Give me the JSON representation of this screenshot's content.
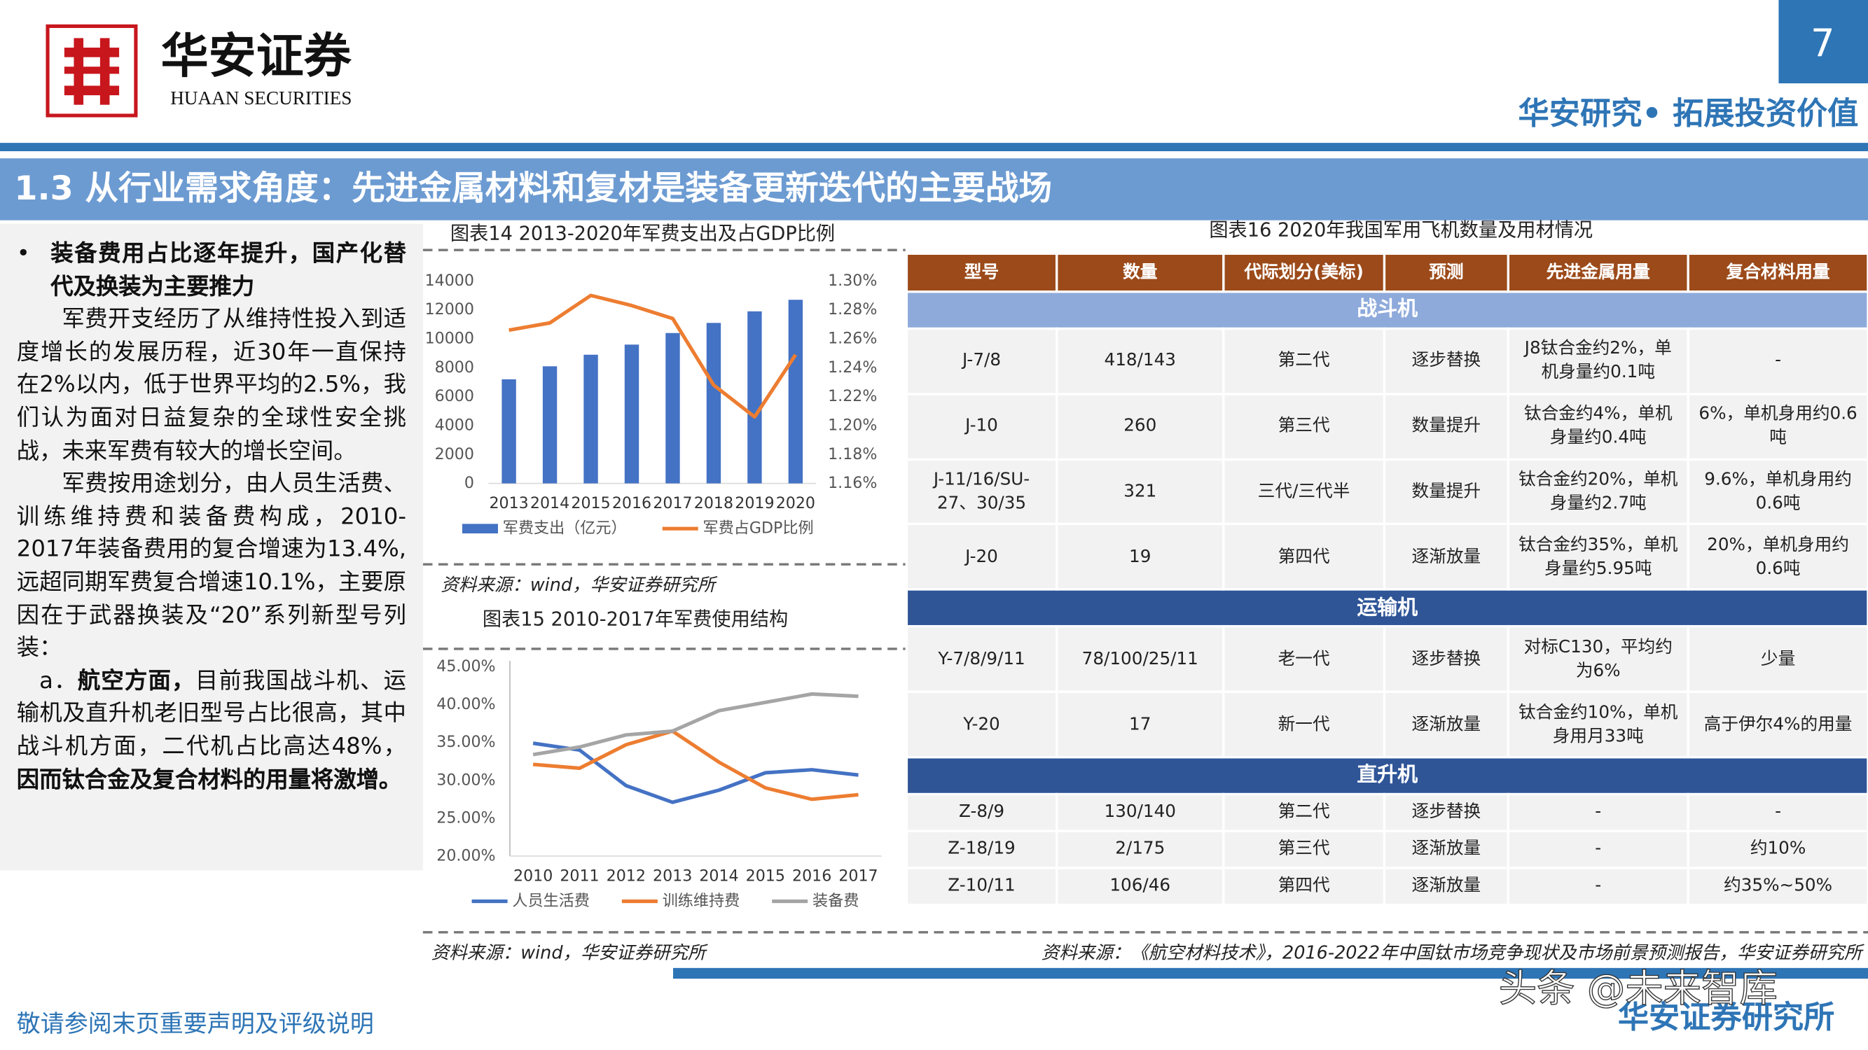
{
  "header": {
    "logo_cn": "华安证券",
    "logo_en": "HUAAN SECURITIES",
    "page": "7",
    "slogan": "华安研究• 拓展投资价值"
  },
  "section_title": "1.3 从行业需求角度：先进金属材料和复材是装备更新迭代的主要战场",
  "left_text": {
    "bullet": "•",
    "heading": "装备费用占比逐年提升，国产化替代及换装为主要推力",
    "paragraphs": [
      [
        {
          "text": "军费开支经历了从维持性投入到适度增长的发展历程，近30年一直保持在2%以内，低于世界平均的2.5%，我们认为面对日益复杂的全球性安全挑战，未来军费有较大的增长空间。",
          "bold": false
        }
      ],
      [
        {
          "text": "军费按用途划分，由人员生活费、训练维持费和装备费构成，2010-2017年装备费用的复合增速为13.4%,远超同期军费复合增速10.1%，主要原因在于武器换装及“20”系列新型号列装：",
          "bold": false
        }
      ],
      [
        {
          "text": "a．",
          "bold": false
        },
        {
          "text": "航空方面，",
          "bold": true
        },
        {
          "text": "目前我国战斗机、运输机及直升机老旧型号占比很高，其中战斗机方面，二代机占比高达48%，",
          "bold": false
        },
        {
          "text": "因而钛合金及复合材料的用量将激增。",
          "bold": true
        }
      ]
    ]
  },
  "chart_data": [
    {
      "type": "bar",
      "title": "图表14 2013-2020年军费支出及占GDP比例",
      "source": "资料来源：wind，华安证券研究所",
      "categories": [
        "2013",
        "2014",
        "2015",
        "2016",
        "2017",
        "2018",
        "2019",
        "2020"
      ],
      "series": [
        {
          "name": "军费支出（亿元）",
          "color": "#4472c4",
          "values": [
            7200,
            8100,
            8900,
            9600,
            10400,
            11100,
            11900,
            12700
          ]
        },
        {
          "name": "军费占GDP比例",
          "color": "#ed7d31",
          "type": "line",
          "axis": "y2",
          "values": [
            1.266,
            1.271,
            1.29,
            1.283,
            1.274,
            1.228,
            1.206,
            1.249
          ]
        }
      ],
      "ylim": [
        0,
        14000
      ],
      "yticks": [
        0,
        2000,
        4000,
        6000,
        8000,
        10000,
        12000,
        14000
      ],
      "y2lim": [
        1.16,
        1.3
      ],
      "y2ticks": [
        {
          "value": 1.16,
          "label": "1.16%"
        },
        {
          "value": 1.18,
          "label": "1.18%"
        },
        {
          "value": 1.2,
          "label": "1.20%"
        },
        {
          "value": 1.22,
          "label": "1.22%"
        },
        {
          "value": 1.24,
          "label": "1.24%"
        },
        {
          "value": 1.26,
          "label": "1.26%"
        },
        {
          "value": 1.28,
          "label": "1.28%"
        },
        {
          "value": 1.3,
          "label": "1.30%"
        }
      ],
      "grid": false
    },
    {
      "type": "line",
      "title": "图表15 2010-2017年军费使用结构",
      "source": "资料来源：wind，华安证券研究所",
      "categories": [
        "2010",
        "2011",
        "2012",
        "2013",
        "2014",
        "2015",
        "2016",
        "2017"
      ],
      "series": [
        {
          "name": "人员生活费",
          "color": "#4472c4",
          "values": [
            34.9,
            34.0,
            29.3,
            27.1,
            28.7,
            31.0,
            31.4,
            30.7
          ]
        },
        {
          "name": "训练维持费",
          "color": "#ed7d31",
          "values": [
            32.1,
            31.6,
            34.7,
            36.5,
            32.4,
            29.0,
            27.5,
            28.1
          ]
        },
        {
          "name": "装备费",
          "color": "#a5a5a5",
          "values": [
            33.4,
            34.4,
            36.0,
            36.5,
            39.2,
            40.3,
            41.4,
            41.1
          ]
        }
      ],
      "ylim": [
        20,
        45
      ],
      "yticks": [
        {
          "value": 20,
          "label": "20.00%"
        },
        {
          "value": 25,
          "label": "25.00%"
        },
        {
          "value": 30,
          "label": "30.00%"
        },
        {
          "value": 35,
          "label": "35.00%"
        },
        {
          "value": 40,
          "label": "40.00%"
        },
        {
          "value": 45,
          "label": "45.00%"
        }
      ],
      "grid": false
    }
  ],
  "table": {
    "title": "图表16 2020年我国军用飞机数量及用材情况",
    "source": "资料来源：《航空材料技术》，2016-2022年中国钛市场竞争现状及市场前景预测报告，华安证券研究所",
    "header": [
      "型号",
      "数量",
      "代际划分(美标)",
      "预测",
      "先进金属用量",
      "复合材料用量"
    ],
    "groups": [
      {
        "name": "战斗机",
        "color": "#8eaadb",
        "rows": [
          [
            "J-7/8",
            "418/143",
            "第二代",
            "逐步替换",
            "J8钛合金约2%，单机身量约0.1吨",
            "-"
          ],
          [
            "J-10",
            "260",
            "第三代",
            "数量提升",
            "钛合金约4%，单机身量约0.4吨",
            "6%，单机身用约0.6吨"
          ],
          [
            "J-11/16/SU-27、30/35",
            "321",
            "三代/三代半",
            "数量提升",
            "钛合金约20%，单机身量约2.7吨",
            "9.6%，单机身用约0.6吨"
          ],
          [
            "J-20",
            "19",
            "第四代",
            "逐渐放量",
            "钛合金约35%，单机身量约5.95吨",
            "20%，单机身用约0.6吨"
          ]
        ]
      },
      {
        "name": "运输机",
        "color": "#2f5597",
        "rows": [
          [
            "Y-7/8/9/11",
            "78/100/25/11",
            "老一代",
            "逐步替换",
            "对标C130，平均约为6%",
            "少量"
          ],
          [
            "Y-20",
            "17",
            "新一代",
            "逐渐放量",
            "钛合金约10%，单机身用月33吨",
            "高于伊尔4%的用量"
          ]
        ]
      },
      {
        "name": "直升机",
        "color": "#2f5597",
        "rows": [
          [
            "Z-8/9",
            "130/140",
            "第二代",
            "逐步替换",
            "-",
            "-"
          ],
          [
            "Z-18/19",
            "2/175",
            "第三代",
            "逐渐放量",
            "-",
            "约10%"
          ],
          [
            "Z-10/11",
            "106/46",
            "第四代",
            "逐渐放量",
            "-",
            "约35%~50%"
          ]
        ]
      }
    ]
  },
  "footer": {
    "disclaimer": "敬请参阅末页重要声明及评级说明",
    "org": "华安证券研究所",
    "watermark": "头条 @未来智库"
  }
}
